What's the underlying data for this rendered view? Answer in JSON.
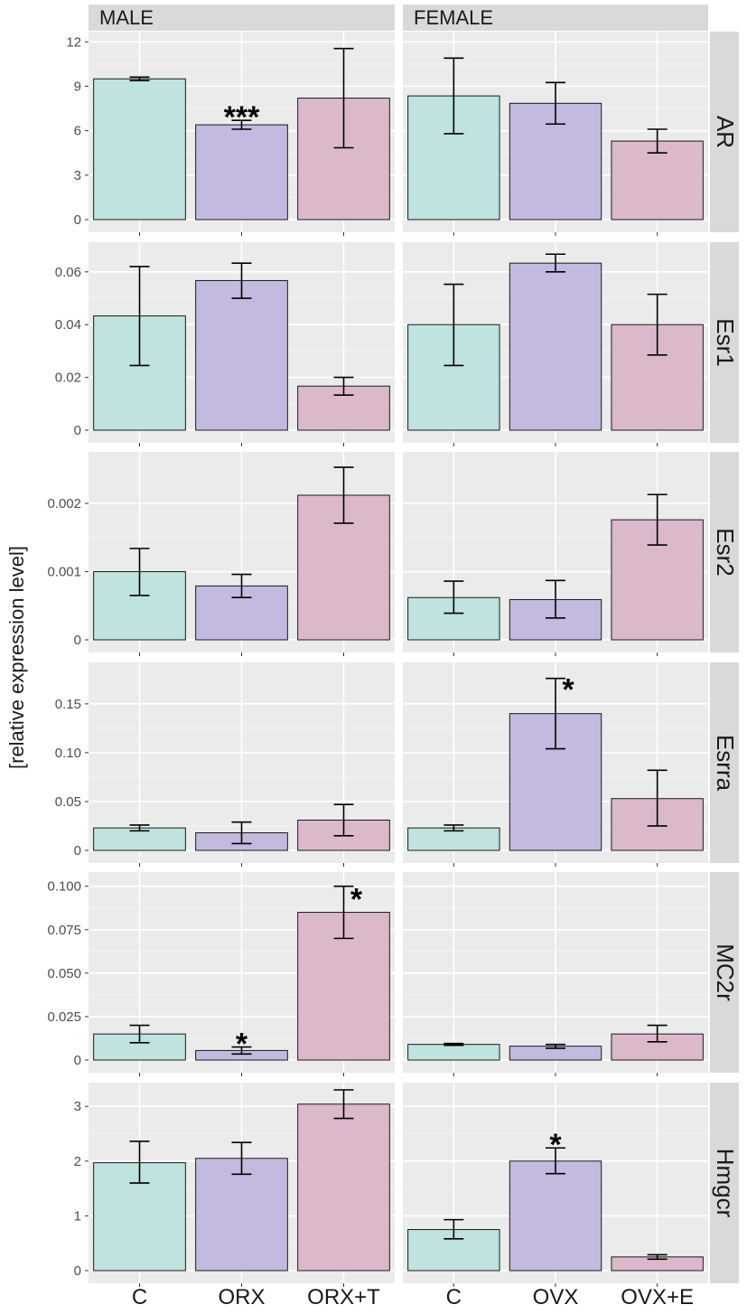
{
  "chart_data": {
    "type": "bar",
    "ylabel": "[relative expression level]",
    "columns": [
      {
        "name": "MALE",
        "categories": [
          "C",
          "ORX",
          "ORX+T"
        ]
      },
      {
        "name": "FEMALE",
        "categories": [
          "C",
          "OVX",
          "OVX+E"
        ]
      }
    ],
    "category_colors": [
      "#bfe3de",
      "#c4b9df",
      "#dbb9cb"
    ],
    "rows": [
      {
        "name": "AR",
        "ylim": [
          0,
          12.2
        ],
        "ticks": [
          0,
          3,
          6,
          9,
          12
        ],
        "tick_labels": [
          "0",
          "3",
          "6",
          "9",
          "12"
        ],
        "panels": [
          {
            "values": [
              9.5,
              6.4,
              8.2
            ],
            "err_low": [
              9.38,
              6.1,
              4.85
            ],
            "err_high": [
              9.62,
              6.7,
              11.55
            ],
            "sig": [
              "",
              "***",
              ""
            ]
          },
          {
            "values": [
              8.35,
              7.85,
              5.3
            ],
            "err_low": [
              5.8,
              6.45,
              4.5
            ],
            "err_high": [
              10.9,
              9.25,
              6.1
            ],
            "sig": [
              "",
              "",
              ""
            ]
          }
        ]
      },
      {
        "name": "Esr1",
        "ylim": [
          0,
          0.0685
        ],
        "ticks": [
          0,
          0.02,
          0.04,
          0.06
        ],
        "tick_labels": [
          "0",
          "0.02",
          "0.04",
          "0.06"
        ],
        "panels": [
          {
            "values": [
              0.0433,
              0.0567,
              0.0167
            ],
            "err_low": [
              0.0245,
              0.05,
              0.0133
            ],
            "err_high": [
              0.062,
              0.0633,
              0.02
            ],
            "sig": [
              "",
              "",
              ""
            ]
          },
          {
            "values": [
              0.04,
              0.0633,
              0.04
            ],
            "err_low": [
              0.0245,
              0.06,
              0.0285
            ],
            "err_high": [
              0.0553,
              0.0667,
              0.0515
            ],
            "sig": [
              "",
              "",
              ""
            ]
          }
        ]
      },
      {
        "name": "Esr2",
        "ylim": [
          0,
          0.00265
        ],
        "ticks": [
          0,
          0.001,
          0.002
        ],
        "tick_labels": [
          "0",
          "0.001",
          "0.002"
        ],
        "panels": [
          {
            "values": [
              0.001,
              0.00079,
              0.00212
            ],
            "err_low": [
              0.00065,
              0.00062,
              0.00171
            ],
            "err_high": [
              0.00134,
              0.00096,
              0.00253
            ],
            "sig": [
              "",
              "",
              ""
            ]
          },
          {
            "values": [
              0.00062,
              0.00059,
              0.00176
            ],
            "err_low": [
              0.00039,
              0.00032,
              0.00139
            ],
            "err_high": [
              0.00086,
              0.00087,
              0.00213
            ],
            "sig": [
              "",
              "",
              ""
            ]
          }
        ]
      },
      {
        "name": "Esrra",
        "ylim": [
          0,
          0.185
        ],
        "ticks": [
          0,
          0.05,
          0.1,
          0.15
        ],
        "tick_labels": [
          "0",
          "0.05",
          "0.10",
          "0.15"
        ],
        "panels": [
          {
            "values": [
              0.023,
              0.018,
              0.031
            ],
            "err_low": [
              0.02,
              0.007,
              0.015
            ],
            "err_high": [
              0.026,
              0.029,
              0.047
            ],
            "sig": [
              "",
              "",
              ""
            ]
          },
          {
            "values": [
              0.023,
              0.14,
              0.053
            ],
            "err_low": [
              0.02,
              0.104,
              0.025
            ],
            "err_high": [
              0.026,
              0.176,
              0.082
            ],
            "sig": [
              "",
              "*",
              ""
            ]
          }
        ]
      },
      {
        "name": "MC2r",
        "ylim": [
          0,
          0.104
        ],
        "ticks": [
          0,
          0.025,
          0.05,
          0.075,
          0.1
        ],
        "tick_labels": [
          "0",
          "0.025",
          "0.050",
          "0.075",
          "0.100"
        ],
        "panels": [
          {
            "values": [
              0.015,
              0.0055,
              0.085
            ],
            "err_low": [
              0.01,
              0.0035,
              0.07
            ],
            "err_high": [
              0.02,
              0.0075,
              0.1
            ],
            "sig": [
              "",
              "*",
              "*"
            ]
          },
          {
            "values": [
              0.009,
              0.008,
              0.015
            ],
            "err_low": [
              0.0085,
              0.0068,
              0.0105
            ],
            "err_high": [
              0.0095,
              0.009,
              0.02
            ],
            "sig": [
              "",
              "",
              ""
            ]
          }
        ]
      },
      {
        "name": "Hmgcr",
        "ylim": [
          0,
          3.3
        ],
        "ticks": [
          0,
          1,
          2,
          3
        ],
        "tick_labels": [
          "0",
          "1",
          "2",
          "3"
        ],
        "panels": [
          {
            "values": [
              1.97,
              2.05,
              3.04
            ],
            "err_low": [
              1.6,
              1.76,
              2.78
            ],
            "err_high": [
              2.36,
              2.34,
              3.3
            ],
            "sig": [
              "",
              "",
              ""
            ]
          },
          {
            "values": [
              0.75,
              2.0,
              0.25
            ],
            "err_low": [
              0.58,
              1.77,
              0.21
            ],
            "err_high": [
              0.93,
              2.24,
              0.29
            ],
            "sig": [
              "",
              "*",
              ""
            ]
          }
        ]
      }
    ]
  }
}
